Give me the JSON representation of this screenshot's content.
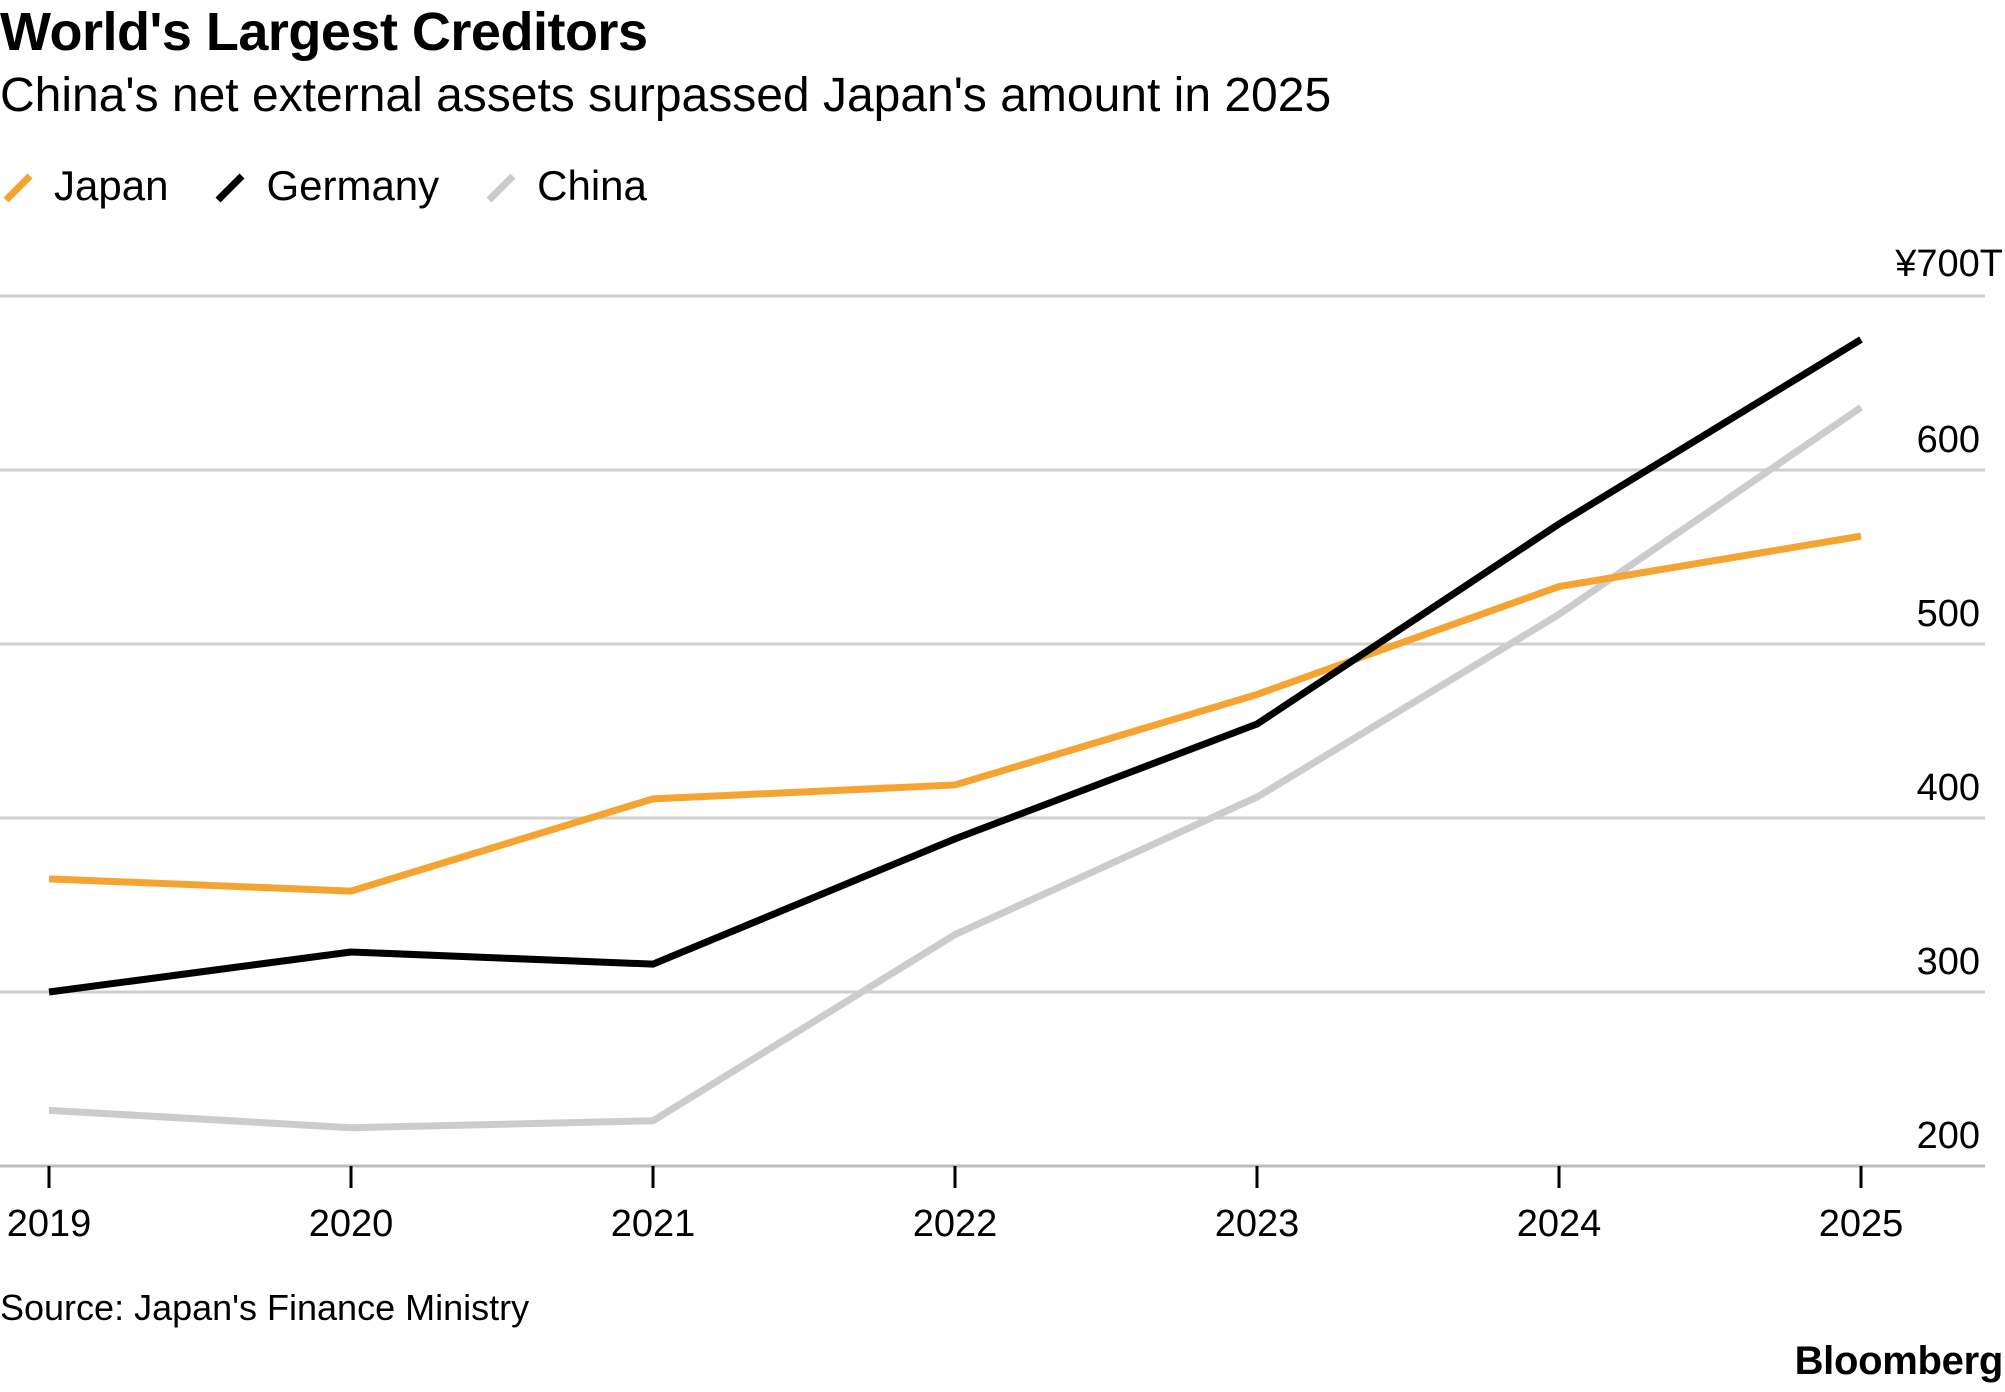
{
  "header": {
    "title": "World's Largest Creditors",
    "subtitle": "China's net external assets surpassed Japan's amount in 2025"
  },
  "legend": {
    "placement": "top-left",
    "items": [
      {
        "label": "Japan",
        "color": "#f5a431"
      },
      {
        "label": "Germany",
        "color": "#000000"
      },
      {
        "label": "China",
        "color": "#cccccc"
      }
    ]
  },
  "footer": {
    "source": "Source: Japan's Finance Ministry",
    "brand": "Bloomberg"
  },
  "chart_data": {
    "type": "line",
    "title": "World's Largest Creditors",
    "subtitle": "China's net external assets surpassed Japan's amount in 2025",
    "x": [
      "2019",
      "2020",
      "2021",
      "2022",
      "2023",
      "2024",
      "2025"
    ],
    "xlabel": "",
    "ylabel": "",
    "ylim": [
      200,
      700
    ],
    "y_ticks": [
      "200",
      "300",
      "400",
      "500",
      "600",
      "¥700T"
    ],
    "y_axis_side": "right",
    "grid": "horizontal",
    "series": [
      {
        "name": "Japan",
        "color": "#f5a431",
        "values": [
          365,
          358,
          411,
          419,
          471,
          533,
          562
        ]
      },
      {
        "name": "Germany",
        "color": "#000000",
        "values": [
          300,
          323,
          316,
          388,
          454,
          569,
          675
        ]
      },
      {
        "name": "China",
        "color": "#cccccc",
        "values": [
          232,
          222,
          226,
          333,
          412,
          517,
          636
        ]
      }
    ]
  }
}
